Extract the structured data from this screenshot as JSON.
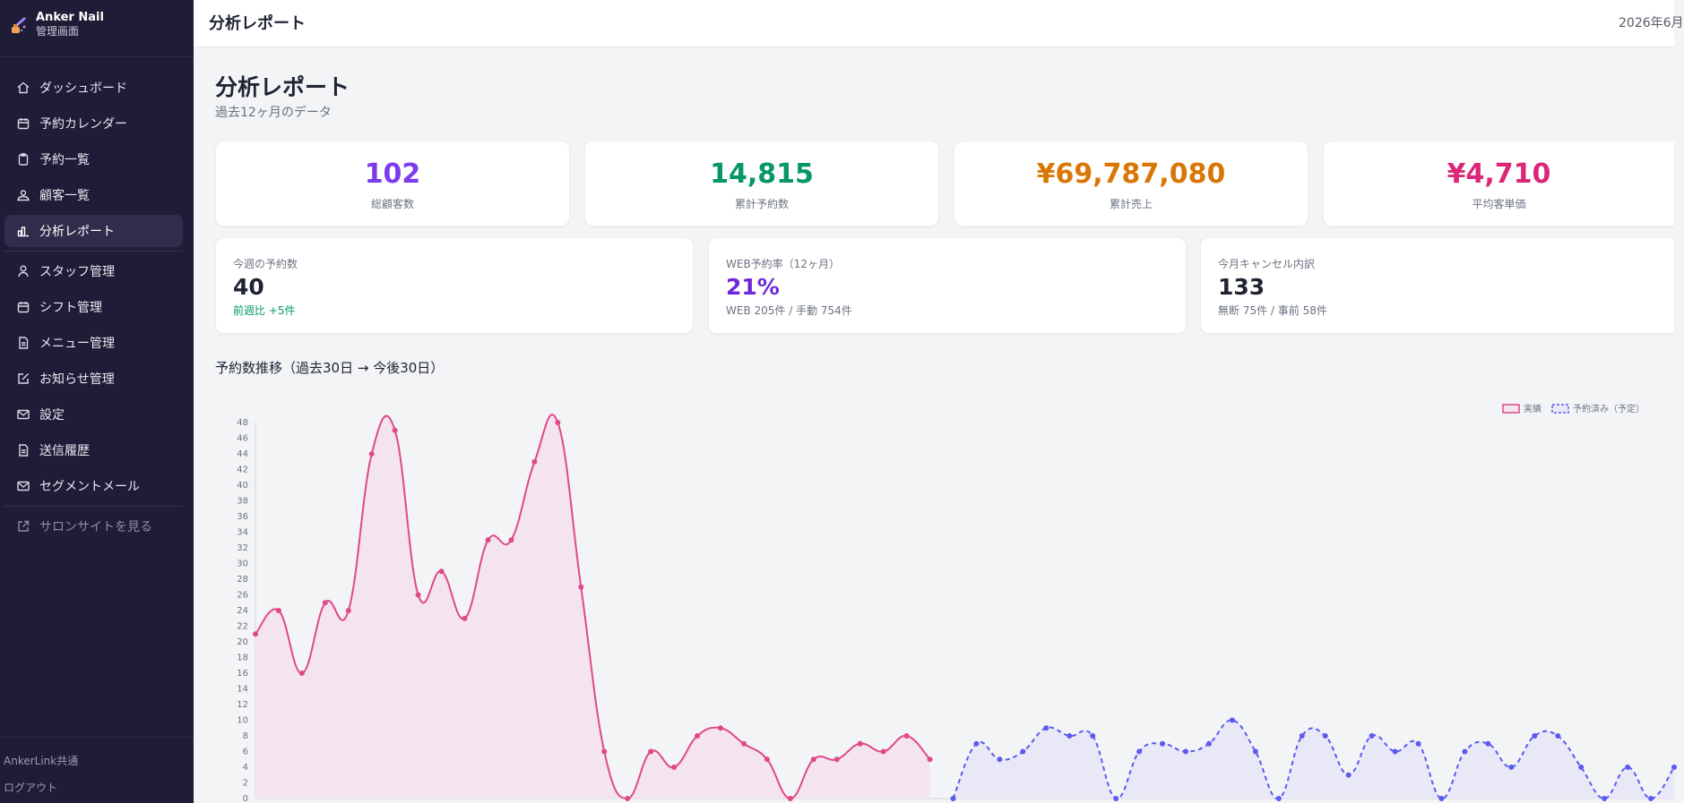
{
  "sidebar": {
    "brand": {
      "name": "Anker Nail",
      "subtitle": "管理画面"
    },
    "items": [
      {
        "label": "ダッシュボード",
        "icon": "home-icon"
      },
      {
        "label": "予約カレンダー",
        "icon": "calendar-icon"
      },
      {
        "label": "予約一覧",
        "icon": "clipboard-icon"
      },
      {
        "label": "顧客一覧",
        "icon": "users-icon"
      },
      {
        "label": "分析レポート",
        "icon": "bar-chart-icon",
        "active": true
      },
      {
        "label": "スタッフ管理",
        "icon": "user-icon"
      },
      {
        "label": "シフト管理",
        "icon": "calendar-icon"
      },
      {
        "label": "メニュー管理",
        "icon": "document-icon"
      },
      {
        "label": "お知らせ管理",
        "icon": "edit-icon"
      },
      {
        "label": "設定",
        "icon": "mail-icon"
      },
      {
        "label": "送信履歴",
        "icon": "document-icon"
      },
      {
        "label": "セグメントメール",
        "icon": "mail-icon"
      },
      {
        "label": "サロンサイトを見る",
        "icon": "external-link-icon"
      }
    ],
    "footer": {
      "shared": "AnkerLink共通",
      "logout": "ログアウト"
    }
  },
  "topbar": {
    "title": "分析レポート",
    "date": "2026年6月"
  },
  "page": {
    "title": "分析レポート",
    "subtitle": "過去12ヶ月のデータ"
  },
  "stats": [
    {
      "value": "102",
      "label": "総顧客数",
      "color": "#7c3aed"
    },
    {
      "value": "14,815",
      "label": "累計予約数",
      "color": "#059669"
    },
    {
      "value": "¥69,787,080",
      "label": "累計売上",
      "color": "#d97706"
    },
    {
      "value": "¥4,710",
      "label": "平均客単価",
      "color": "#db2777"
    }
  ],
  "info_cards": [
    {
      "label": "今週の予約数",
      "value": "40",
      "note": "前週比 +5件",
      "value_color": "#1f2333",
      "note_color": "#059669"
    },
    {
      "label": "WEB予約率（12ヶ月）",
      "value": "21%",
      "note": "WEB 205件 / 手動 754件",
      "value_color": "#6d28d9",
      "note_color": "#6b7280"
    },
    {
      "label": "今月キャンセル内訳",
      "value": "133",
      "note": "無断 75件 / 事前 58件",
      "value_color": "#1f2333",
      "note_color": "#6b7280"
    }
  ],
  "chart_section": {
    "title": "予約数推移（過去30日 → 今後30日）"
  },
  "chart_data": {
    "type": "line",
    "yticks": [
      0,
      2,
      4,
      6,
      8,
      10,
      12,
      14,
      16,
      18,
      20,
      22,
      24,
      26,
      28,
      30,
      32,
      34,
      36,
      38,
      40,
      42,
      44,
      46,
      48
    ],
    "ylim": [
      0,
      48
    ],
    "grid": false,
    "legend_position": "top-right",
    "series": [
      {
        "name": "実績",
        "color": "#e0488b",
        "fill": "#f3e4ee",
        "dashed": false,
        "x": [
          0,
          1,
          2,
          3,
          4,
          5,
          6,
          7,
          8,
          9,
          10,
          11,
          12,
          13,
          14,
          15,
          16,
          17,
          18,
          19,
          20,
          21,
          22,
          23,
          24,
          25,
          26,
          27,
          28,
          29
        ],
        "values": [
          21,
          24,
          16,
          25,
          24,
          44,
          47,
          26,
          29,
          23,
          33,
          33,
          43,
          48,
          27,
          6,
          0,
          6,
          4,
          8,
          9,
          7,
          5,
          0,
          5,
          5,
          7,
          6,
          8,
          5
        ]
      },
      {
        "name": "予約済み（予定）",
        "color": "#5b5bf0",
        "fill": "#e8e8f7",
        "dashed": true,
        "x": [
          30,
          31,
          32,
          33,
          34,
          35,
          36,
          37,
          38,
          39,
          40,
          41,
          42,
          43,
          44,
          45,
          46,
          47,
          48,
          49,
          50,
          51,
          52,
          53,
          54,
          55,
          56,
          57,
          58,
          59,
          60,
          61
        ],
        "values": [
          0,
          7,
          5,
          6,
          9,
          8,
          8,
          0,
          6,
          7,
          6,
          7,
          10,
          6,
          0,
          8,
          8,
          3,
          8,
          6,
          7,
          0,
          6,
          7,
          4,
          8,
          8,
          4,
          0,
          4,
          0,
          4
        ]
      }
    ]
  }
}
